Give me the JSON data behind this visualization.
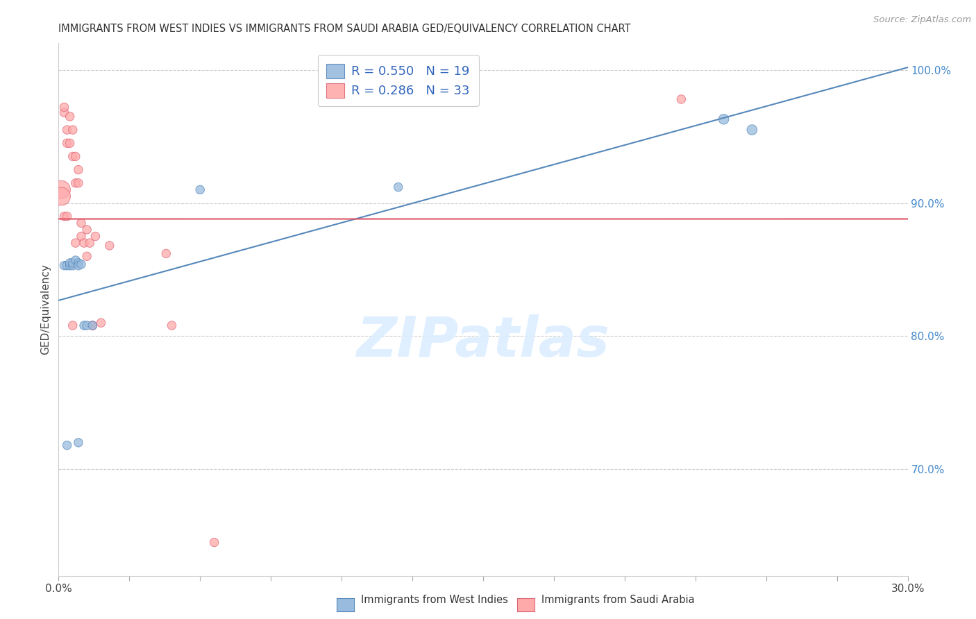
{
  "title": "IMMIGRANTS FROM WEST INDIES VS IMMIGRANTS FROM SAUDI ARABIA GED/EQUIVALENCY CORRELATION CHART",
  "source": "Source: ZipAtlas.com",
  "ylabel": "GED/Equivalency",
  "xlim": [
    0.0,
    0.3
  ],
  "ylim": [
    0.62,
    1.02
  ],
  "xticks": [
    0.0,
    0.025,
    0.05,
    0.075,
    0.1,
    0.125,
    0.15,
    0.175,
    0.2,
    0.225,
    0.25,
    0.275,
    0.3
  ],
  "ytick_labels_right": [
    "100.0%",
    "90.0%",
    "80.0%",
    "70.0%"
  ],
  "ytick_values_right": [
    1.0,
    0.9,
    0.8,
    0.7
  ],
  "blue_label": "Immigrants from West Indies",
  "pink_label": "Immigrants from Saudi Arabia",
  "blue_R": 0.55,
  "blue_N": 19,
  "pink_R": 0.286,
  "pink_N": 33,
  "blue_color": "#99BBDD",
  "pink_color": "#FFAAAA",
  "blue_edge_color": "#5588BB",
  "pink_edge_color": "#DD6677",
  "blue_line_color": "#5588BB",
  "pink_line_color": "#DD5566",
  "watermark_text": "ZIPatlas",
  "blue_scatter_x": [
    0.002,
    0.003,
    0.004,
    0.004,
    0.005,
    0.005,
    0.006,
    0.007,
    0.007,
    0.008,
    0.009,
    0.01,
    0.012,
    0.12,
    0.235,
    0.245,
    0.003,
    0.007,
    0.05
  ],
  "blue_scatter_y": [
    0.853,
    0.853,
    0.853,
    0.855,
    0.853,
    0.855,
    0.857,
    0.855,
    0.853,
    0.854,
    0.808,
    0.808,
    0.808,
    0.912,
    0.963,
    0.955,
    0.718,
    0.72,
    0.91
  ],
  "blue_scatter_s": [
    80,
    80,
    80,
    80,
    80,
    80,
    80,
    80,
    80,
    80,
    80,
    80,
    80,
    80,
    110,
    110,
    80,
    80,
    80
  ],
  "pink_scatter_x": [
    0.001,
    0.001,
    0.002,
    0.002,
    0.003,
    0.003,
    0.004,
    0.004,
    0.005,
    0.005,
    0.006,
    0.006,
    0.007,
    0.007,
    0.008,
    0.008,
    0.009,
    0.01,
    0.011,
    0.012,
    0.013,
    0.015,
    0.018,
    0.038,
    0.04,
    0.055,
    0.22,
    0.002,
    0.003,
    0.005,
    0.006,
    0.01,
    0.012
  ],
  "pink_scatter_y": [
    0.91,
    0.905,
    0.968,
    0.972,
    0.955,
    0.945,
    0.965,
    0.945,
    0.955,
    0.935,
    0.935,
    0.915,
    0.925,
    0.915,
    0.875,
    0.885,
    0.87,
    0.88,
    0.87,
    0.808,
    0.875,
    0.81,
    0.868,
    0.862,
    0.808,
    0.645,
    0.978,
    0.89,
    0.89,
    0.808,
    0.87,
    0.86,
    0.808
  ],
  "pink_scatter_s": [
    350,
    350,
    80,
    80,
    80,
    80,
    80,
    80,
    80,
    80,
    80,
    80,
    80,
    80,
    80,
    80,
    80,
    80,
    80,
    80,
    80,
    80,
    80,
    80,
    80,
    80,
    80,
    80,
    80,
    80,
    80,
    80,
    80
  ]
}
